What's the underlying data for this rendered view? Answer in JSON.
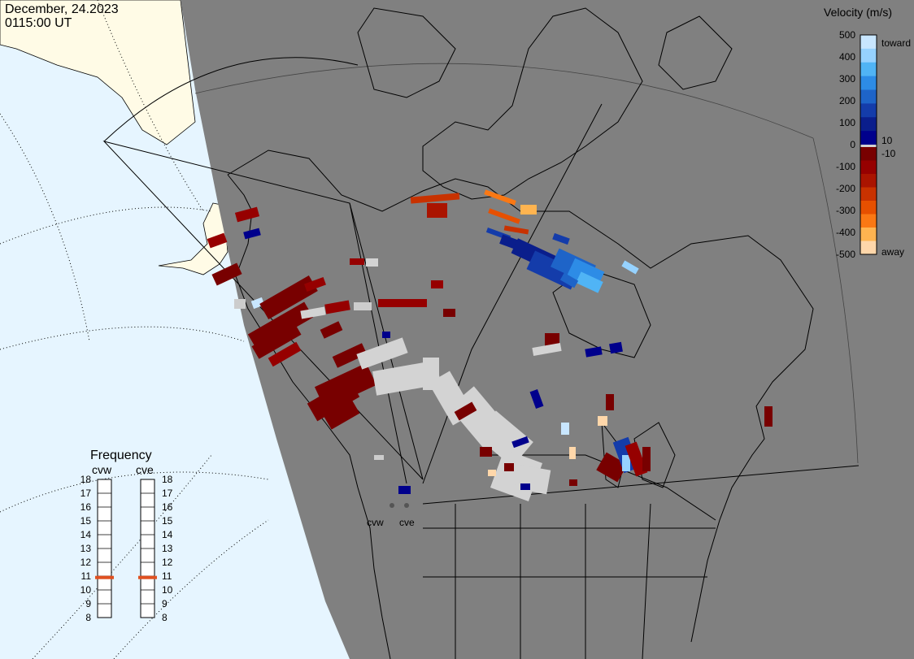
{
  "header": {
    "date": "December, 24.2023",
    "time": "0115:00 UT"
  },
  "legend": {
    "title": "Velocity (m/s)",
    "toward_label": "toward",
    "away_label": "away",
    "small_pos": "10",
    "small_neg": "-10",
    "ticks": [
      "500",
      "400",
      "300",
      "200",
      "100",
      "0",
      "-100",
      "-200",
      "-300",
      "-400",
      "-500"
    ],
    "colors": [
      "#c8e6ff",
      "#96d2ff",
      "#50b4f5",
      "#2d8ce6",
      "#1e64c8",
      "#143caa",
      "#0a1e8c",
      "#00008c",
      "#780000",
      "#960000",
      "#aa1400",
      "#c83200",
      "#e65000",
      "#fa7814",
      "#ffb450",
      "#ffd7aa"
    ]
  },
  "frequency": {
    "title": "Frequency",
    "stations": [
      "cvw",
      "cve"
    ],
    "ticks": [
      "18",
      "17",
      "16",
      "15",
      "14",
      "13",
      "12",
      "11",
      "10",
      "9",
      "8"
    ],
    "values_mhz": [
      10.9,
      10.9
    ],
    "indicator_color": "#e05020"
  },
  "map": {
    "radar_sites": [
      "cvw",
      "cve"
    ],
    "colors": {
      "ocean": "#e6f5ff",
      "night": "#808080",
      "land": "#fffbe6",
      "ground_scatter": "#d3d3d3"
    }
  }
}
